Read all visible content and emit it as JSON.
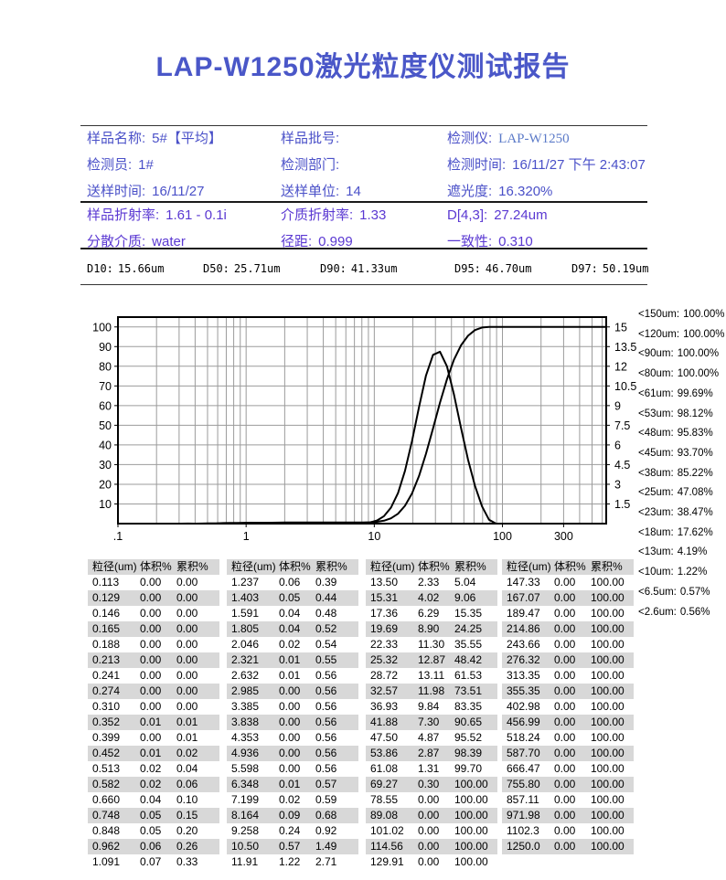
{
  "title": "LAP-W1250激光粒度仪测试报告",
  "info_rows": [
    [
      {
        "label": "样品名称:",
        "value": "5#【平均】"
      },
      {
        "label": "样品批号:",
        "value": ""
      },
      {
        "label": "检测仪:",
        "value": "LAP-W1250"
      }
    ],
    [
      {
        "label": "检测员:",
        "value": "1#"
      },
      {
        "label": "检测部门:",
        "value": ""
      },
      {
        "label": "检测时间:",
        "value": "16/11/27 下午 2:43:07"
      }
    ],
    [
      {
        "label": "送样时间:",
        "value": "16/11/27"
      },
      {
        "label": "送样单位:",
        "value": "14"
      },
      {
        "label": "遮光度:",
        "value": "16.320%"
      }
    ]
  ],
  "param_rows": [
    [
      {
        "label": "样品折射率:",
        "value": "1.61 - 0.1i"
      },
      {
        "label": "介质折射率:",
        "value": "1.33"
      },
      {
        "label": "D[4,3]:",
        "value": "27.24um"
      }
    ],
    [
      {
        "label": "分散介质:",
        "value": "water"
      },
      {
        "label": "径距:",
        "value": "0.999"
      },
      {
        "label": "一致性:",
        "value": "0.310"
      }
    ]
  ],
  "d_values": [
    {
      "label": "D10:",
      "value": "15.66um"
    },
    {
      "label": "D50:",
      "value": "25.71um"
    },
    {
      "label": "D90:",
      "value": "41.33um"
    },
    {
      "label": "D95:",
      "value": "46.70um"
    },
    {
      "label": "D97:",
      "value": "50.19um"
    }
  ],
  "chart_data": {
    "type": "line",
    "title": "",
    "x_scale": "log",
    "grid": true,
    "legend": "none",
    "x_axis": {
      "min": 0.1,
      "max": 645,
      "ticks": [
        0.1,
        1,
        10,
        100,
        300
      ],
      "tick_labels": [
        ".1",
        "1",
        "10",
        "100",
        "300"
      ]
    },
    "y_left": {
      "min": 0,
      "max": 100,
      "plot_max": 105,
      "ticks": [
        10,
        20,
        30,
        40,
        50,
        60,
        70,
        80,
        90,
        100
      ]
    },
    "y_right": {
      "min": 0,
      "max": 15,
      "ticks": [
        "1.5",
        "3",
        "4.5",
        "6",
        "7.5",
        "9",
        "10.5",
        "12",
        "13.5",
        "15"
      ]
    },
    "x": [
      0.113,
      0.129,
      0.146,
      0.165,
      0.188,
      0.213,
      0.241,
      0.274,
      0.31,
      0.352,
      0.399,
      0.452,
      0.513,
      0.582,
      0.66,
      0.748,
      0.848,
      0.962,
      1.091,
      1.237,
      1.403,
      1.591,
      1.805,
      2.046,
      2.321,
      2.632,
      2.985,
      3.385,
      3.838,
      4.353,
      4.936,
      5.598,
      6.348,
      7.199,
      8.164,
      9.258,
      10.5,
      11.91,
      13.5,
      15.31,
      17.36,
      19.69,
      22.33,
      25.32,
      28.72,
      32.57,
      36.93,
      41.88,
      47.5,
      53.86,
      61.08,
      69.27,
      78.55,
      89.08,
      101.02,
      114.56,
      129.91,
      147.33,
      167.07,
      189.47,
      214.86,
      243.66,
      276.32,
      313.35,
      355.35,
      402.98,
      456.99,
      518.24,
      587.7,
      666.47,
      755.8,
      857.11,
      971.98,
      1102.3,
      1250.0
    ],
    "series": [
      {
        "name": "cumulative-percent",
        "axis": "left",
        "values": [
          0,
          0,
          0,
          0,
          0,
          0,
          0,
          0,
          0,
          0.01,
          0.01,
          0.02,
          0.04,
          0.06,
          0.1,
          0.15,
          0.2,
          0.26,
          0.33,
          0.39,
          0.44,
          0.48,
          0.52,
          0.54,
          0.55,
          0.56,
          0.56,
          0.56,
          0.56,
          0.56,
          0.56,
          0.56,
          0.56,
          0.57,
          0.59,
          0.68,
          0.92,
          1.49,
          2.71,
          5.04,
          9.06,
          15.35,
          24.25,
          35.55,
          48.42,
          61.53,
          73.51,
          83.35,
          90.65,
          95.52,
          98.39,
          99.7,
          100,
          100,
          100,
          100,
          100,
          100,
          100,
          100,
          100,
          100,
          100,
          100,
          100,
          100,
          100,
          100,
          100,
          100,
          100,
          100,
          100,
          100,
          100
        ]
      },
      {
        "name": "volume-percent",
        "axis": "right",
        "values": [
          0,
          0,
          0,
          0,
          0,
          0,
          0,
          0,
          0,
          0.01,
          0,
          0.01,
          0.02,
          0.02,
          0.04,
          0.05,
          0.05,
          0.06,
          0.07,
          0.06,
          0.05,
          0.04,
          0.04,
          0.02,
          0.01,
          0.01,
          0,
          0,
          0,
          0,
          0,
          0,
          0,
          0.01,
          0.02,
          0.09,
          0.24,
          0.57,
          1.22,
          2.33,
          4.02,
          6.29,
          8.9,
          11.3,
          12.87,
          13.11,
          11.98,
          9.84,
          7.3,
          4.87,
          2.87,
          1.31,
          0.3,
          0,
          0,
          0,
          0,
          0,
          0,
          0,
          0,
          0,
          0,
          0,
          0,
          0,
          0,
          0,
          0,
          0,
          0,
          0,
          0,
          0,
          0
        ]
      }
    ]
  },
  "sidebar_percentiles": [
    {
      "limit": "<150um:",
      "pct": "100.00%"
    },
    {
      "limit": "<120um:",
      "pct": "100.00%"
    },
    {
      "limit": "<90um:",
      "pct": "100.00%"
    },
    {
      "limit": "<80um:",
      "pct": "100.00%"
    },
    {
      "limit": "<61um:",
      "pct": "99.69%"
    },
    {
      "limit": "<53um:",
      "pct": "98.12%"
    },
    {
      "limit": "<48um:",
      "pct": "95.83%"
    },
    {
      "limit": "<45um:",
      "pct": "93.70%"
    },
    {
      "limit": "<38um:",
      "pct": "85.22%"
    },
    {
      "limit": "<25um:",
      "pct": "47.08%"
    },
    {
      "limit": "<23um:",
      "pct": "38.47%"
    },
    {
      "limit": "<18um:",
      "pct": "17.62%"
    },
    {
      "limit": "<13um:",
      "pct": "4.19%"
    },
    {
      "limit": "<10um:",
      "pct": "1.22%"
    },
    {
      "limit": "<6.5um:",
      "pct": "0.57%"
    },
    {
      "limit": "<2.6um:",
      "pct": "0.56%"
    }
  ],
  "table": {
    "headers": [
      "粒径(um)",
      "体积%",
      "累积%"
    ],
    "groups": [
      [
        [
          "0.113",
          "0.00",
          "0.00"
        ],
        [
          "0.129",
          "0.00",
          "0.00"
        ],
        [
          "0.146",
          "0.00",
          "0.00"
        ],
        [
          "0.165",
          "0.00",
          "0.00"
        ],
        [
          "0.188",
          "0.00",
          "0.00"
        ],
        [
          "0.213",
          "0.00",
          "0.00"
        ],
        [
          "0.241",
          "0.00",
          "0.00"
        ],
        [
          "0.274",
          "0.00",
          "0.00"
        ],
        [
          "0.310",
          "0.00",
          "0.00"
        ],
        [
          "0.352",
          "0.01",
          "0.01"
        ],
        [
          "0.399",
          "0.00",
          "0.01"
        ],
        [
          "0.452",
          "0.01",
          "0.02"
        ],
        [
          "0.513",
          "0.02",
          "0.04"
        ],
        [
          "0.582",
          "0.02",
          "0.06"
        ],
        [
          "0.660",
          "0.04",
          "0.10"
        ],
        [
          "0.748",
          "0.05",
          "0.15"
        ],
        [
          "0.848",
          "0.05",
          "0.20"
        ],
        [
          "0.962",
          "0.06",
          "0.26"
        ],
        [
          "1.091",
          "0.07",
          "0.33"
        ]
      ],
      [
        [
          "1.237",
          "0.06",
          "0.39"
        ],
        [
          "1.403",
          "0.05",
          "0.44"
        ],
        [
          "1.591",
          "0.04",
          "0.48"
        ],
        [
          "1.805",
          "0.04",
          "0.52"
        ],
        [
          "2.046",
          "0.02",
          "0.54"
        ],
        [
          "2.321",
          "0.01",
          "0.55"
        ],
        [
          "2.632",
          "0.01",
          "0.56"
        ],
        [
          "2.985",
          "0.00",
          "0.56"
        ],
        [
          "3.385",
          "0.00",
          "0.56"
        ],
        [
          "3.838",
          "0.00",
          "0.56"
        ],
        [
          "4.353",
          "0.00",
          "0.56"
        ],
        [
          "4.936",
          "0.00",
          "0.56"
        ],
        [
          "5.598",
          "0.00",
          "0.56"
        ],
        [
          "6.348",
          "0.01",
          "0.57"
        ],
        [
          "7.199",
          "0.02",
          "0.59"
        ],
        [
          "8.164",
          "0.09",
          "0.68"
        ],
        [
          "9.258",
          "0.24",
          "0.92"
        ],
        [
          "10.50",
          "0.57",
          "1.49"
        ],
        [
          "11.91",
          "1.22",
          "2.71"
        ]
      ],
      [
        [
          "13.50",
          "2.33",
          "5.04"
        ],
        [
          "15.31",
          "4.02",
          "9.06"
        ],
        [
          "17.36",
          "6.29",
          "15.35"
        ],
        [
          "19.69",
          "8.90",
          "24.25"
        ],
        [
          "22.33",
          "11.30",
          "35.55"
        ],
        [
          "25.32",
          "12.87",
          "48.42"
        ],
        [
          "28.72",
          "13.11",
          "61.53"
        ],
        [
          "32.57",
          "11.98",
          "73.51"
        ],
        [
          "36.93",
          "9.84",
          "83.35"
        ],
        [
          "41.88",
          "7.30",
          "90.65"
        ],
        [
          "47.50",
          "4.87",
          "95.52"
        ],
        [
          "53.86",
          "2.87",
          "98.39"
        ],
        [
          "61.08",
          "1.31",
          "99.70"
        ],
        [
          "69.27",
          "0.30",
          "100.00"
        ],
        [
          "78.55",
          "0.00",
          "100.00"
        ],
        [
          "89.08",
          "0.00",
          "100.00"
        ],
        [
          "101.02",
          "0.00",
          "100.00"
        ],
        [
          "114.56",
          "0.00",
          "100.00"
        ],
        [
          "129.91",
          "0.00",
          "100.00"
        ]
      ],
      [
        [
          "147.33",
          "0.00",
          "100.00"
        ],
        [
          "167.07",
          "0.00",
          "100.00"
        ],
        [
          "189.47",
          "0.00",
          "100.00"
        ],
        [
          "214.86",
          "0.00",
          "100.00"
        ],
        [
          "243.66",
          "0.00",
          "100.00"
        ],
        [
          "276.32",
          "0.00",
          "100.00"
        ],
        [
          "313.35",
          "0.00",
          "100.00"
        ],
        [
          "355.35",
          "0.00",
          "100.00"
        ],
        [
          "402.98",
          "0.00",
          "100.00"
        ],
        [
          "456.99",
          "0.00",
          "100.00"
        ],
        [
          "518.24",
          "0.00",
          "100.00"
        ],
        [
          "587.70",
          "0.00",
          "100.00"
        ],
        [
          "666.47",
          "0.00",
          "100.00"
        ],
        [
          "755.80",
          "0.00",
          "100.00"
        ],
        [
          "857.11",
          "0.00",
          "100.00"
        ],
        [
          "971.98",
          "0.00",
          "100.00"
        ],
        [
          "1102.3",
          "0.00",
          "100.00"
        ],
        [
          "1250.0",
          "0.00",
          "100.00"
        ]
      ]
    ]
  },
  "colors": {
    "title_blue": "#4a57c8",
    "info_blue": "#4a50c8",
    "param_purple": "#5a38d2",
    "instrument_serif_blue": "#5b7ac8",
    "table_stripe_gray": "#d8d8d8",
    "chart_grid_gray": "#9b9b9b",
    "curve_black": "#000000"
  }
}
